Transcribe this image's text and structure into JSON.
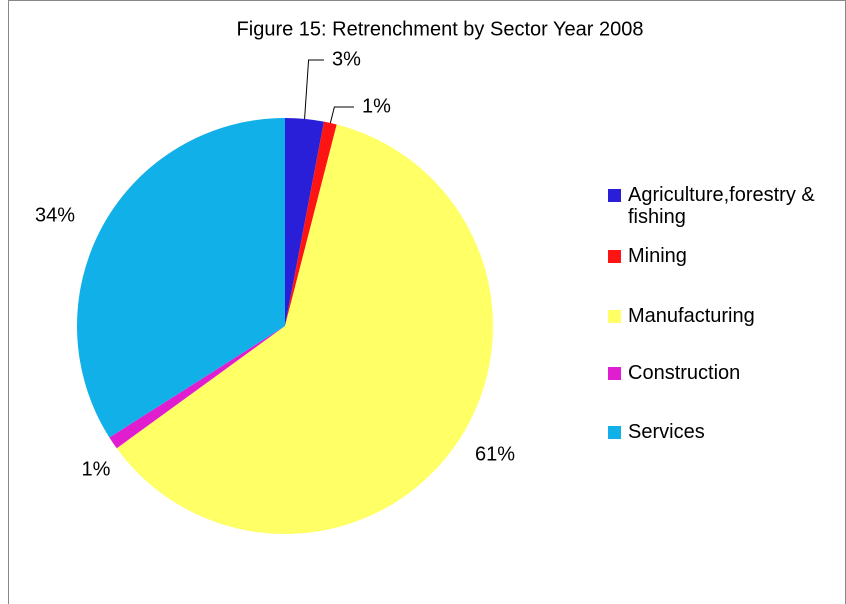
{
  "chart_data": {
    "type": "pie",
    "title": "Figure 15: Retrenchment by Sector Year 2008",
    "categories": [
      "Agriculture,forestry & fishing",
      "Mining",
      "Manufacturing",
      "Construction",
      "Services"
    ],
    "values": [
      3,
      1,
      61,
      1,
      34
    ],
    "value_labels": [
      "3%",
      "1%",
      "61%",
      "1%",
      "34%"
    ],
    "colors": [
      "#2a1fd8",
      "#ff1414",
      "#ffff66",
      "#e01ed0",
      "#12b0e8"
    ],
    "legend": "right"
  }
}
